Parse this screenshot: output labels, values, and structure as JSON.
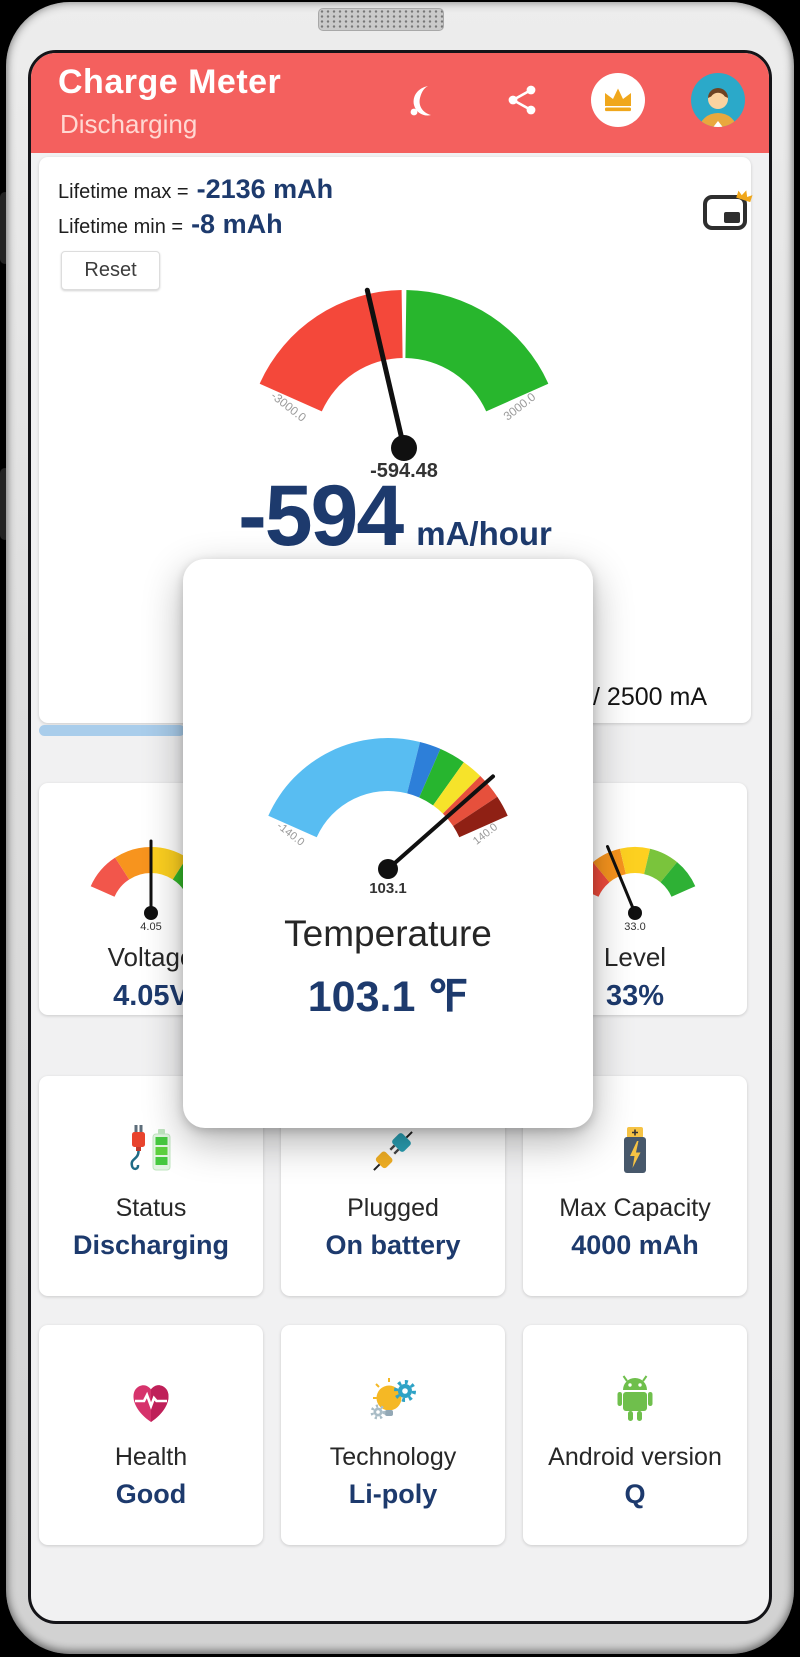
{
  "header": {
    "title": "Charge Meter",
    "subtitle": "Discharging"
  },
  "main_card": {
    "lifetime_max_label": "Lifetime max =",
    "lifetime_max_value": "-2136 mAh",
    "lifetime_min_label": "Lifetime min =",
    "lifetime_min_value": "-8 mAh",
    "reset_label": "Reset",
    "big_value": "-594",
    "big_unit": "mA/hour",
    "capacity_text": "A / 2500 mA"
  },
  "popup": {
    "title": "Temperature",
    "value": "103.1 ℉"
  },
  "gauge_cards": {
    "voltage": {
      "label": "Voltage",
      "value": "4.05V"
    },
    "level": {
      "label": "Level",
      "value": "33%"
    }
  },
  "info_cards": [
    {
      "icon": "charging-battery-icon",
      "label": "Status",
      "value": "Discharging"
    },
    {
      "icon": "unplugged-icon",
      "label": "Plugged",
      "value": "On battery"
    },
    {
      "icon": "battery-capacity-icon",
      "label": "Max Capacity",
      "value": "4000 mAh"
    },
    {
      "icon": "health-heart-icon",
      "label": "Health",
      "value": "Good"
    },
    {
      "icon": "technology-icon",
      "label": "Technology",
      "value": "Li-poly"
    },
    {
      "icon": "android-icon",
      "label": "Android version",
      "value": "Q"
    }
  ],
  "colors": {
    "header_red": "#f4605e",
    "value_navy": "#1d3a6d",
    "progress_blue": "#a9cdeb"
  },
  "chart_data": {
    "main": {
      "type": "gauge",
      "min": -3000,
      "max": 3000,
      "value": -594.48,
      "needle_label": "-594.48",
      "end_labels": [
        "-3000.0",
        "3000.0"
      ],
      "segments": [
        {
          "from": -3000,
          "to": -40,
          "color": "#f4483a"
        },
        {
          "from": 40,
          "to": 3000,
          "color": "#28b62d"
        }
      ]
    },
    "temperature": {
      "type": "gauge",
      "min": -140,
      "max": 140,
      "value": 103.1,
      "needle_label": "103.1",
      "end_labels": [
        "-140.0",
        "140.0"
      ],
      "segments": [
        {
          "from": -140,
          "to": 30,
          "color": "#58bdf2"
        },
        {
          "from": 30,
          "to": 50,
          "color": "#2d7fd9"
        },
        {
          "from": 50,
          "to": 75,
          "color": "#27b52f"
        },
        {
          "from": 75,
          "to": 95,
          "color": "#f6e32a"
        },
        {
          "from": 95,
          "to": 120,
          "color": "#e6503c"
        },
        {
          "from": 120,
          "to": 140,
          "color": "#8f2014"
        }
      ]
    },
    "voltage": {
      "type": "gauge",
      "min": 3.2,
      "max": 4.9,
      "value": 4.05,
      "needle_label": "4.05",
      "segments": [
        {
          "from": 3.2,
          "to": 3.625,
          "color": "#f2564b"
        },
        {
          "from": 3.625,
          "to": 4.05,
          "color": "#f7941e"
        },
        {
          "from": 4.05,
          "to": 4.475,
          "color": "#fdd020"
        },
        {
          "from": 4.475,
          "to": 4.9,
          "color": "#35b729"
        }
      ]
    },
    "level": {
      "type": "gauge",
      "min": 0,
      "max": 100,
      "value": 33,
      "needle_label": "33.0",
      "segments": [
        {
          "from": 0,
          "to": 20,
          "color": "#ef4b3c"
        },
        {
          "from": 20,
          "to": 40,
          "color": "#f7941e"
        },
        {
          "from": 40,
          "to": 60,
          "color": "#fdd020"
        },
        {
          "from": 60,
          "to": 80,
          "color": "#7ac43c"
        },
        {
          "from": 80,
          "to": 100,
          "color": "#2eb135"
        }
      ]
    }
  }
}
